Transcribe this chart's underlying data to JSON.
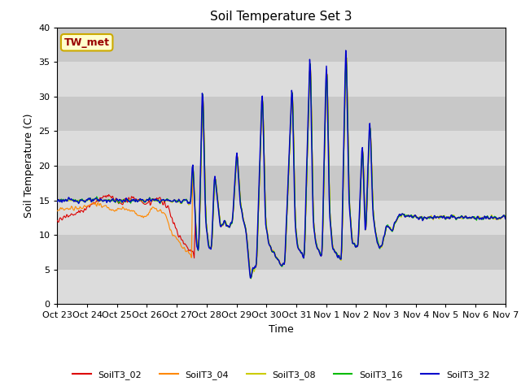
{
  "title": "Soil Temperature Set 3",
  "xlabel": "Time",
  "ylabel": "Soil Temperature (C)",
  "ylim": [
    0,
    40
  ],
  "plot_bg_light": "#dcdcdc",
  "plot_bg_dark": "#c8c8c8",
  "annotation_text": "TW_met",
  "annotation_box_facecolor": "#ffffcc",
  "annotation_box_edgecolor": "#ccaa00",
  "annotation_text_color": "#990000",
  "series_colors": {
    "SoilT3_02": "#dd0000",
    "SoilT3_04": "#ff8800",
    "SoilT3_08": "#cccc00",
    "SoilT3_16": "#00bb00",
    "SoilT3_32": "#0000cc"
  },
  "x_tick_labels": [
    "Oct 23",
    "Oct 24",
    "Oct 25",
    "Oct 26",
    "Oct 27",
    "Oct 28",
    "Oct 29",
    "Oct 30",
    "Oct 31",
    "Nov 1",
    "Nov 2",
    "Nov 3",
    "Nov 4",
    "Nov 5",
    "Nov 6",
    "Nov 7"
  ],
  "yticks": [
    0,
    5,
    10,
    15,
    20,
    25,
    30,
    35,
    40
  ],
  "figsize": [
    6.4,
    4.8
  ],
  "dpi": 100
}
